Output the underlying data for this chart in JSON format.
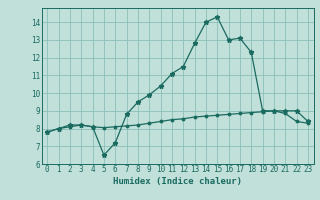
{
  "xlabel": "Humidex (Indice chaleur)",
  "xlim": [
    -0.5,
    23.5
  ],
  "ylim": [
    6,
    14.8
  ],
  "yticks": [
    6,
    7,
    8,
    9,
    10,
    11,
    12,
    13,
    14
  ],
  "xticks": [
    0,
    1,
    2,
    3,
    4,
    5,
    6,
    7,
    8,
    9,
    10,
    11,
    12,
    13,
    14,
    15,
    16,
    17,
    18,
    19,
    20,
    21,
    22,
    23
  ],
  "bg_color": "#c2e0da",
  "grid_color": "#8bbfb8",
  "line_color": "#1a6b60",
  "curve1_x": [
    0,
    1,
    2,
    3,
    4,
    5,
    6,
    7,
    8,
    9,
    10,
    11,
    12,
    13,
    14,
    15,
    16,
    17,
    18,
    19,
    20,
    21,
    22,
    23
  ],
  "curve1_y": [
    7.8,
    8.0,
    8.1,
    8.2,
    8.1,
    8.05,
    8.1,
    8.15,
    8.2,
    8.3,
    8.4,
    8.5,
    8.55,
    8.65,
    8.7,
    8.75,
    8.8,
    8.85,
    8.9,
    8.95,
    9.0,
    8.85,
    8.4,
    8.3
  ],
  "curve2_x": [
    0,
    1,
    2,
    3,
    4,
    5,
    6,
    7,
    8,
    9,
    10,
    11,
    12,
    13,
    14,
    15,
    16,
    17,
    18,
    19,
    20,
    21,
    22,
    23
  ],
  "curve2_y": [
    7.8,
    8.0,
    8.2,
    8.2,
    8.1,
    6.5,
    7.2,
    8.8,
    9.5,
    9.9,
    10.4,
    11.1,
    11.5,
    12.8,
    14.0,
    14.3,
    13.0,
    13.1,
    12.3,
    9.0,
    9.0,
    9.0,
    9.0,
    8.4
  ]
}
